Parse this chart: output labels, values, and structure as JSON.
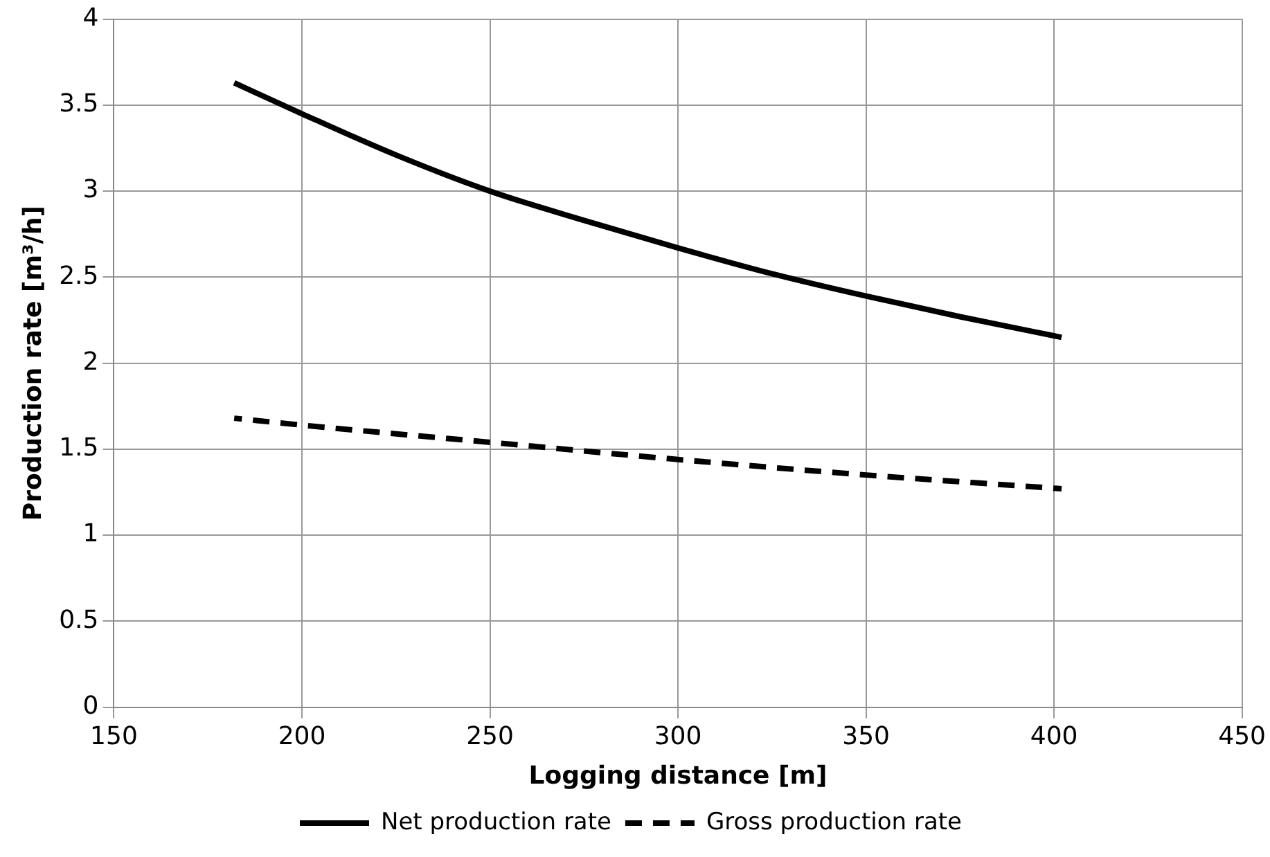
{
  "chart_data": {
    "type": "line",
    "xlabel": "Logging distance [m]",
    "ylabel": "Production rate [m³/h]",
    "xlim": [
      150,
      450
    ],
    "xticks": [
      150,
      200,
      250,
      300,
      350,
      400,
      450
    ],
    "ylim": [
      0,
      4
    ],
    "yticks": [
      0,
      0.5,
      1,
      1.5,
      2,
      2.5,
      3,
      3.5,
      4
    ],
    "grid": true,
    "legend": "bottom",
    "marker": "none",
    "series": [
      {
        "name": "Net production rate",
        "color": "#000000",
        "line_style": "solid",
        "x": [
          182,
          200,
          225,
          250,
          275,
          300,
          325,
          350,
          375,
          402
        ],
        "values": [
          3.63,
          3.45,
          3.21,
          3.0,
          2.83,
          2.67,
          2.52,
          2.39,
          2.27,
          2.15
        ]
      },
      {
        "name": "Gross production rate",
        "color": "#000000",
        "line_style": "dashed",
        "x": [
          182,
          200,
          250,
          300,
          350,
          402
        ],
        "values": [
          1.68,
          1.64,
          1.54,
          1.44,
          1.35,
          1.27
        ]
      }
    ]
  }
}
